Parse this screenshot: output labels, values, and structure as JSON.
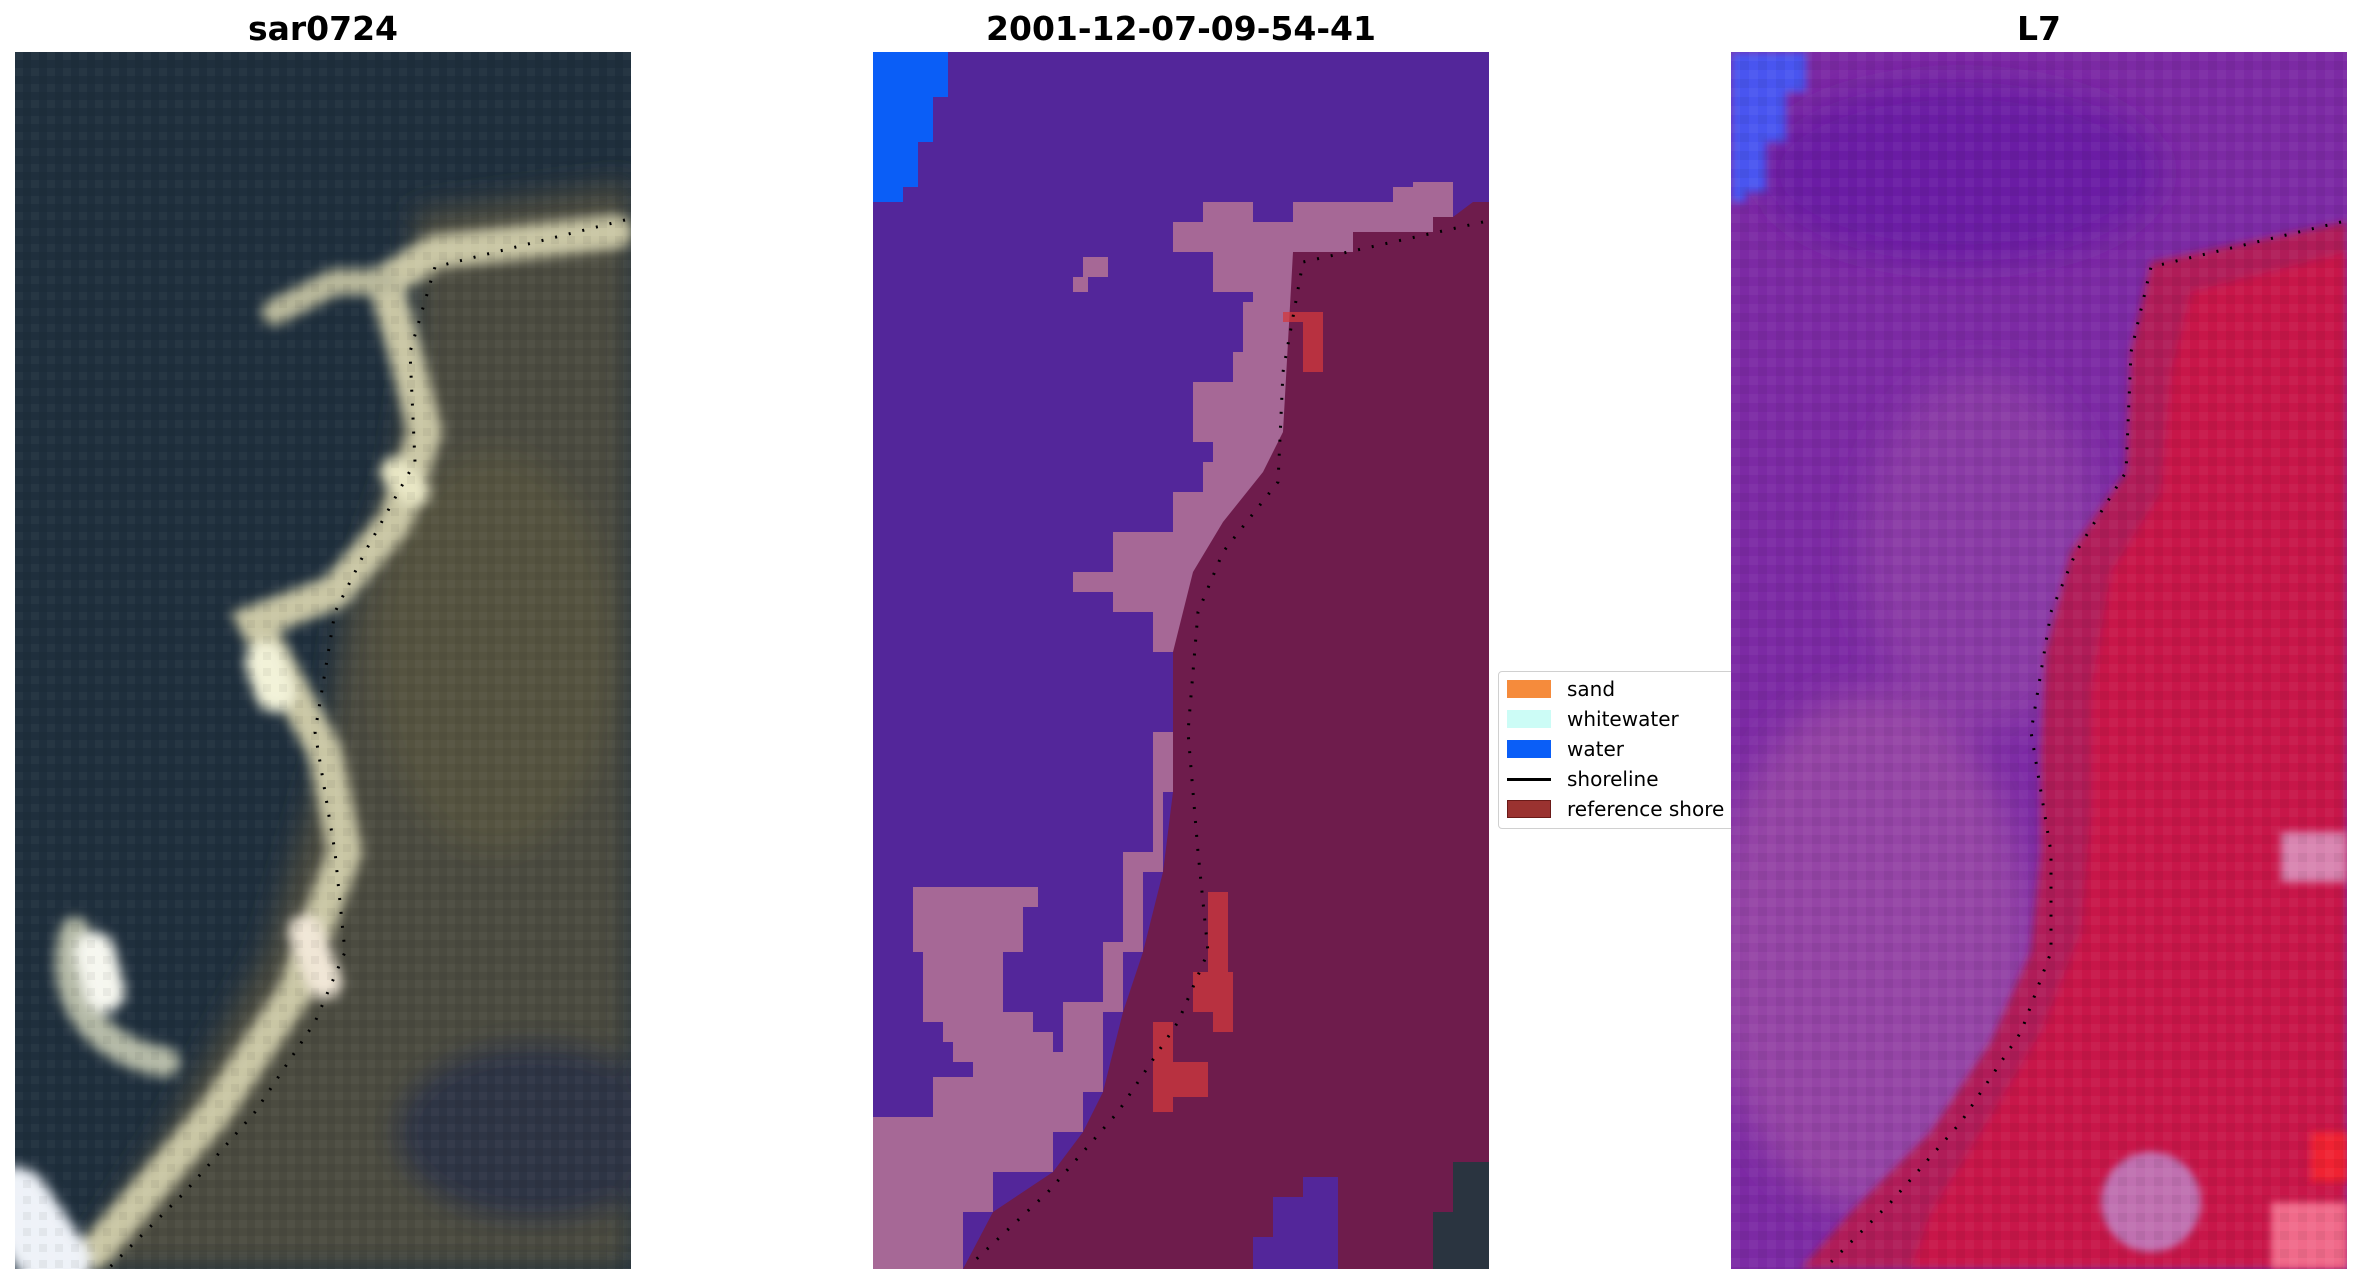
{
  "panels": [
    {
      "title": "sar0724"
    },
    {
      "title": "2001-12-07-09-54-41"
    },
    {
      "title": "L7"
    }
  ],
  "legend": {
    "items": [
      {
        "label": "sand",
        "color": "#f58b3c",
        "kind": "patch"
      },
      {
        "label": "whitewater",
        "color": "#ccfcf6",
        "kind": "patch"
      },
      {
        "label": "water",
        "color": "#0a5ef7",
        "kind": "patch"
      },
      {
        "label": "shoreline",
        "color": "#000000",
        "kind": "line"
      },
      {
        "label": "reference shore",
        "color": "#9a3230",
        "kind": "patch"
      }
    ]
  },
  "colors": {
    "rgb_sea": "#1f2f3e",
    "rgb_land": "#4a4a3e",
    "rgb_beach": "#c8c6a6",
    "class_water_other": "#53269a",
    "class_sand_overlay": "#a66896",
    "class_land_overlay": "#6e1c4c",
    "class_water_pixel": "#0a5ef7",
    "class_ref_shore": "#d2383c",
    "l7_sea": "#7a2aa6",
    "l7_land": "#c21a4e",
    "l7_water": "#3b5cf3"
  }
}
